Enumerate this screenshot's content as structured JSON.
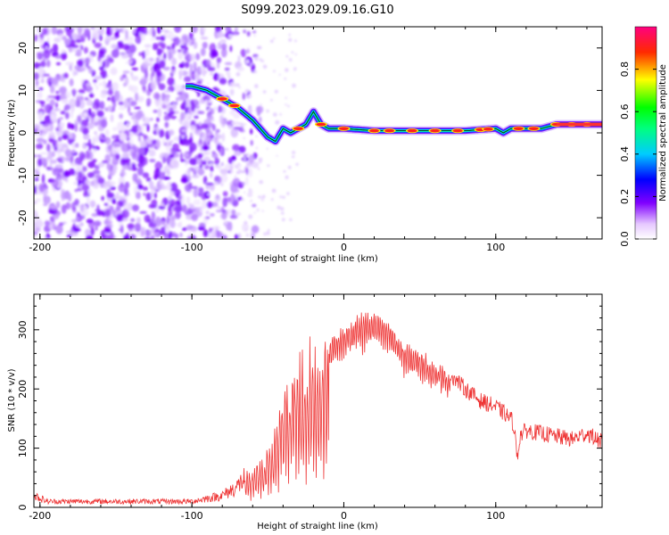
{
  "title": "S099.2023.029.09.16.G10",
  "chart_data": [
    {
      "type": "heatmap",
      "xlabel": "Height of straight line (km)",
      "ylabel": "Frequency (Hz)",
      "xlim": [
        -204,
        170
      ],
      "ylim": [
        -25,
        25
      ],
      "xticks": [
        -200,
        -100,
        0,
        100
      ],
      "yticks": [
        -20,
        -10,
        0,
        10,
        20
      ],
      "colorbar": {
        "label": "Normalized spectral amplitude",
        "range": [
          0,
          1
        ],
        "ticks": [
          0.0,
          0.2,
          0.4,
          0.6,
          0.8
        ]
      },
      "ridge": {
        "x": [
          -100,
          -90,
          -80,
          -75,
          -70,
          -60,
          -55,
          -50,
          -45,
          -40,
          -35,
          -30,
          -25,
          -20,
          -15,
          -10,
          0,
          20,
          50,
          80,
          100,
          105,
          110,
          130,
          140,
          170
        ],
        "y": [
          11,
          10,
          8,
          7,
          6,
          3,
          1,
          -1,
          -2,
          1,
          0,
          1,
          2,
          5,
          2,
          1,
          1,
          0.5,
          0.5,
          0.5,
          1,
          0,
          1,
          1,
          2,
          2
        ]
      },
      "noise_region_x": [
        -204,
        -90
      ]
    },
    {
      "type": "line",
      "xlabel": "Height of straight line (km)",
      "ylabel": "SNR (10 * v/v)",
      "xlim": [
        -204,
        170
      ],
      "ylim": [
        0,
        360
      ],
      "xticks": [
        -200,
        -100,
        0,
        100
      ],
      "yticks": [
        0,
        100,
        200,
        300
      ],
      "color": "#ee3333",
      "envelope": {
        "x": [
          -204,
          -195,
          -150,
          -100,
          -80,
          -70,
          -62,
          -55,
          -45,
          -40,
          -35,
          -30,
          -25,
          -20,
          -10,
          0,
          10,
          20,
          30,
          40,
          50,
          60,
          70,
          80,
          90,
          100,
          110,
          115,
          120,
          130,
          140,
          150,
          160,
          170
        ],
        "y": [
          20,
          10,
          10,
          10,
          20,
          35,
          60,
          80,
          120,
          200,
          230,
          240,
          250,
          260,
          280,
          300,
          320,
          325,
          310,
          270,
          260,
          240,
          225,
          200,
          180,
          170,
          150,
          120,
          130,
          125,
          120,
          115,
          125,
          110
        ]
      }
    }
  ]
}
